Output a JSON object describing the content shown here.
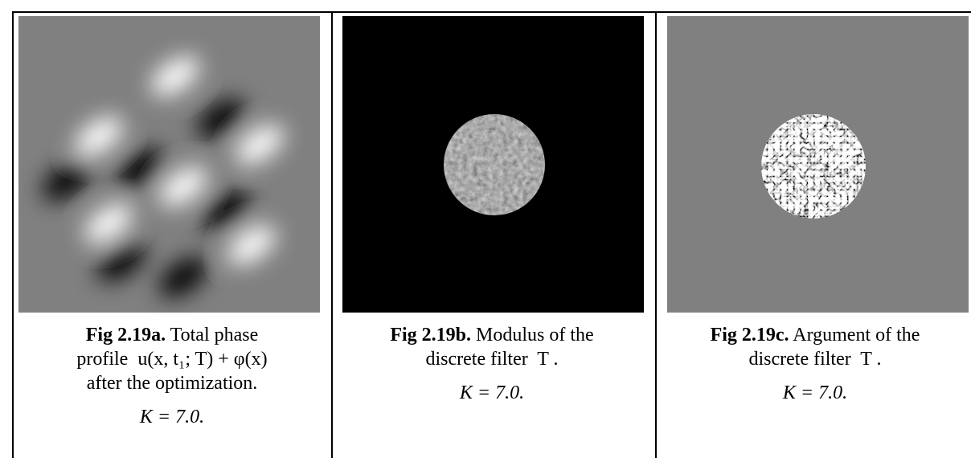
{
  "figures": [
    {
      "label": "Fig 2.19a.",
      "first": "Total phase",
      "lines": [
        {
          "text": "profile  u(x, t₁; T) + φ(x)",
          "math": false
        },
        {
          "text": "after the optimization.",
          "math": false
        },
        {
          "text": "K = 7.0.",
          "math": true
        }
      ]
    },
    {
      "label": "Fig 2.19b.",
      "first": "Modulus of the",
      "lines": [
        {
          "text": "discrete filter  T .",
          "math": false
        },
        {
          "text": "K = 7.0.",
          "math": true
        }
      ]
    },
    {
      "label": "Fig 2.19c.",
      "first": "Argument of the",
      "lines": [
        {
          "text": "discrete filter  T .",
          "math": false
        },
        {
          "text": "K = 7.0.",
          "math": true
        }
      ]
    }
  ]
}
